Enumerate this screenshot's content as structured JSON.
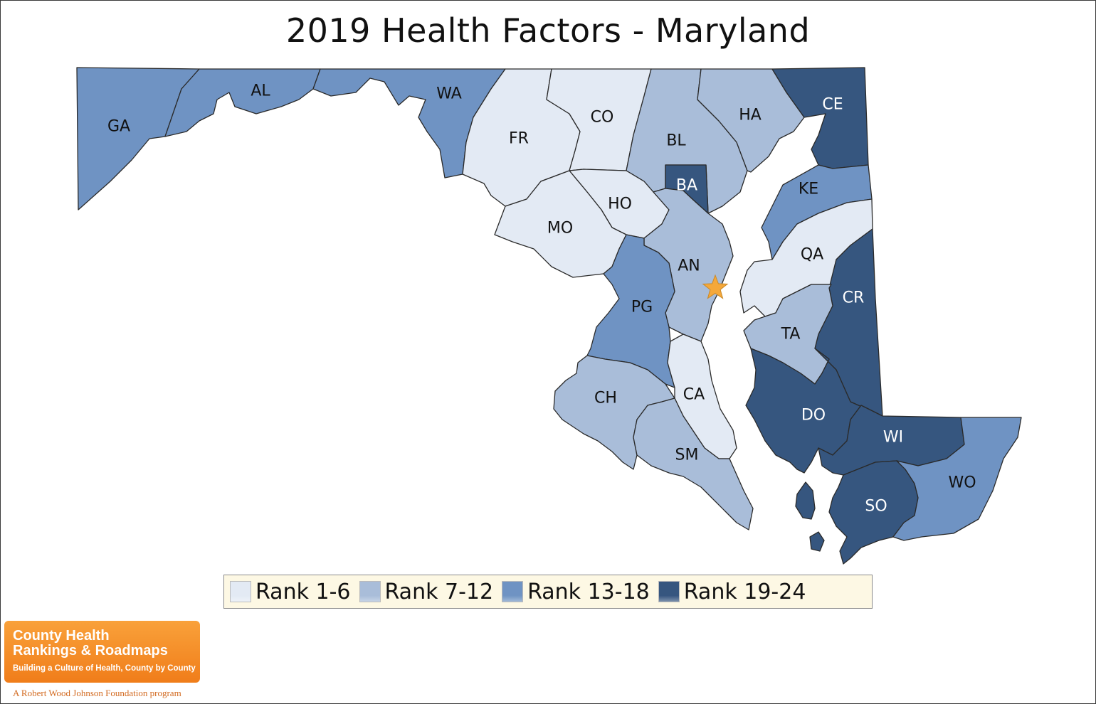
{
  "title": "2019 Health Factors - Maryland",
  "colors": {
    "rank_1_6": "#e3eaf4",
    "rank_7_12": "#a9bdd9",
    "rank_13_18": "#6f93c3",
    "rank_19_24": "#36567f",
    "capital_star": "#f5a83a",
    "legend_background": "#fdf8e4"
  },
  "capital_marker_icon": "star-icon",
  "counties": [
    {
      "label": "GA",
      "rank_group": "rank_13_18"
    },
    {
      "label": "AL",
      "rank_group": "rank_13_18"
    },
    {
      "label": "WA",
      "rank_group": "rank_13_18"
    },
    {
      "label": "FR",
      "rank_group": "rank_1_6"
    },
    {
      "label": "CO",
      "rank_group": "rank_1_6"
    },
    {
      "label": "BL",
      "rank_group": "rank_7_12"
    },
    {
      "label": "HA",
      "rank_group": "rank_7_12"
    },
    {
      "label": "CE",
      "rank_group": "rank_19_24"
    },
    {
      "label": "BA",
      "rank_group": "rank_19_24"
    },
    {
      "label": "KE",
      "rank_group": "rank_13_18"
    },
    {
      "label": "HO",
      "rank_group": "rank_1_6"
    },
    {
      "label": "MO",
      "rank_group": "rank_1_6"
    },
    {
      "label": "AN",
      "rank_group": "rank_7_12"
    },
    {
      "label": "QA",
      "rank_group": "rank_1_6"
    },
    {
      "label": "PG",
      "rank_group": "rank_13_18"
    },
    {
      "label": "CR",
      "rank_group": "rank_19_24"
    },
    {
      "label": "TA",
      "rank_group": "rank_7_12"
    },
    {
      "label": "CA",
      "rank_group": "rank_1_6"
    },
    {
      "label": "CH",
      "rank_group": "rank_7_12"
    },
    {
      "label": "SM",
      "rank_group": "rank_7_12"
    },
    {
      "label": "DO",
      "rank_group": "rank_19_24"
    },
    {
      "label": "WI",
      "rank_group": "rank_19_24"
    },
    {
      "label": "SO",
      "rank_group": "rank_19_24"
    },
    {
      "label": "WO",
      "rank_group": "rank_13_18"
    }
  ],
  "legend": [
    {
      "label": "Rank 1-6",
      "rank_group": "rank_1_6"
    },
    {
      "label": "Rank 7-12",
      "rank_group": "rank_7_12"
    },
    {
      "label": "Rank 13-18",
      "rank_group": "rank_13_18"
    },
    {
      "label": "Rank 19-24",
      "rank_group": "rank_19_24"
    }
  ],
  "logo": {
    "line1": "County Health",
    "line2": "Rankings & Roadmaps",
    "tagline": "Building a Culture of Health, County by County",
    "foundation": "A Robert Wood Johnson Foundation program"
  }
}
